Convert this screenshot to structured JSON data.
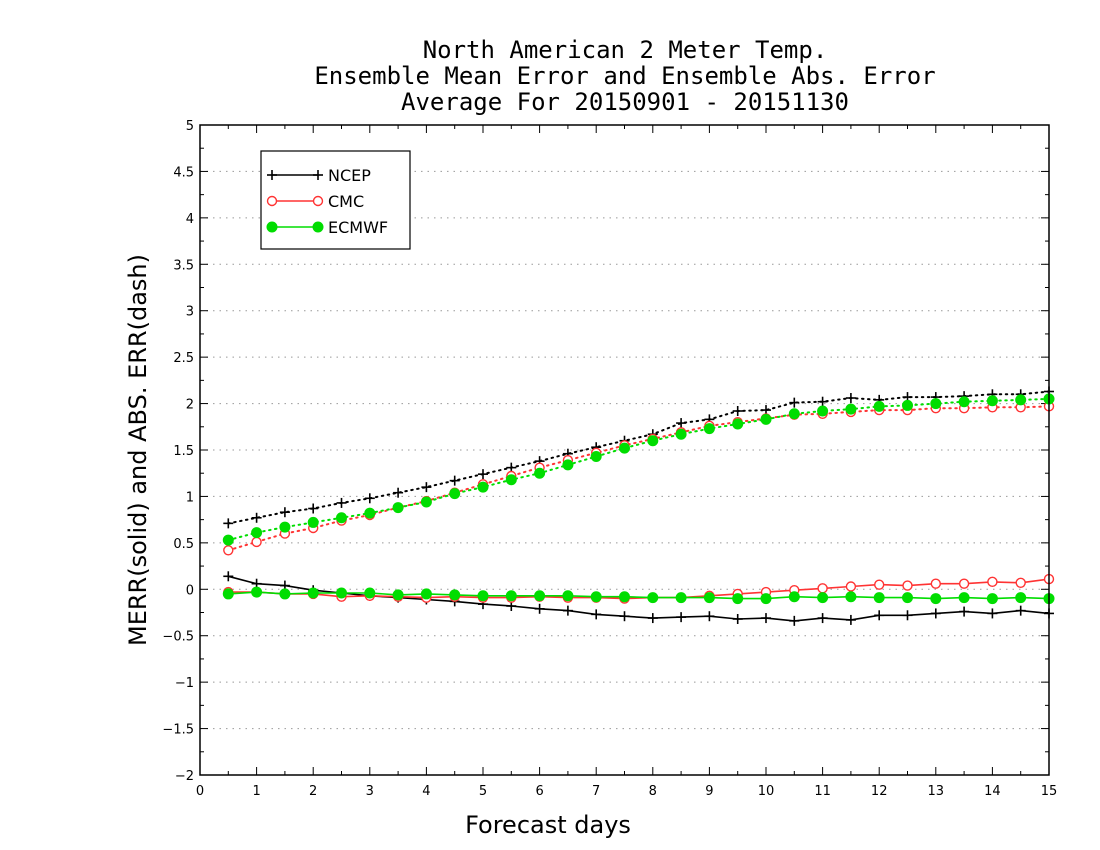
{
  "chart_data": {
    "type": "line",
    "title": [
      "North American 2 Meter Temp.",
      "Ensemble Mean Error and Ensemble Abs. Error",
      "Average For 20150901 - 20151130"
    ],
    "xlabel": "Forecast days",
    "ylabel": "MERR(solid) and ABS. ERR(dash)",
    "xlim": [
      0,
      15
    ],
    "ylim": [
      -2,
      5
    ],
    "xticks": [
      "0",
      "1",
      "2",
      "3",
      "4",
      "5",
      "6",
      "7",
      "8",
      "9",
      "10",
      "11",
      "12",
      "13",
      "14",
      "15"
    ],
    "yticks": [
      "5",
      "4.5",
      "4",
      "3.5",
      "3",
      "2.5",
      "2",
      "1.5",
      "1",
      "0.5",
      "0",
      "−0.5",
      "−1",
      "−1.5",
      "−2"
    ],
    "grid": "horizontal dotted",
    "legend_position": "top-left",
    "x": [
      0.5,
      1,
      1.5,
      2,
      2.5,
      3,
      3.5,
      4,
      4.5,
      5,
      5.5,
      6,
      6.5,
      7,
      7.5,
      8,
      8.5,
      9,
      9.5,
      10,
      10.5,
      11,
      11.5,
      12,
      12.5,
      13,
      13.5,
      14,
      14.5,
      15
    ],
    "series": [
      {
        "name": "NCEP",
        "color": "#000000",
        "marker": "plus",
        "merr": [
          0.14,
          0.06,
          0.04,
          -0.01,
          -0.04,
          -0.07,
          -0.09,
          -0.11,
          -0.13,
          -0.16,
          -0.18,
          -0.21,
          -0.23,
          -0.27,
          -0.29,
          -0.31,
          -0.3,
          -0.29,
          -0.32,
          -0.31,
          -0.34,
          -0.31,
          -0.33,
          -0.28,
          -0.28,
          -0.26,
          -0.24,
          -0.26,
          -0.23,
          -0.26
        ],
        "abs_err": [
          0.71,
          0.77,
          0.83,
          0.87,
          0.93,
          0.98,
          1.04,
          1.1,
          1.17,
          1.24,
          1.31,
          1.38,
          1.46,
          1.53,
          1.6,
          1.67,
          1.79,
          1.83,
          1.92,
          1.93,
          2.01,
          2.02,
          2.06,
          2.04,
          2.07,
          2.07,
          2.08,
          2.1,
          2.1,
          2.13
        ]
      },
      {
        "name": "CMC",
        "color": "#ff3333",
        "marker": "open-circle",
        "merr": [
          -0.03,
          -0.03,
          -0.05,
          -0.05,
          -0.08,
          -0.07,
          -0.08,
          -0.09,
          -0.08,
          -0.09,
          -0.09,
          -0.08,
          -0.09,
          -0.09,
          -0.1,
          -0.09,
          -0.09,
          -0.07,
          -0.05,
          -0.03,
          -0.01,
          0.01,
          0.03,
          0.05,
          0.04,
          0.06,
          0.06,
          0.08,
          0.07,
          0.11
        ],
        "abs_err": [
          0.42,
          0.51,
          0.6,
          0.66,
          0.74,
          0.8,
          0.88,
          0.95,
          1.04,
          1.13,
          1.22,
          1.31,
          1.39,
          1.47,
          1.55,
          1.62,
          1.69,
          1.76,
          1.8,
          1.84,
          1.88,
          1.89,
          1.91,
          1.93,
          1.93,
          1.95,
          1.95,
          1.96,
          1.96,
          1.97
        ]
      },
      {
        "name": "ECMWF",
        "color": "#00dd00",
        "marker": "filled-circle",
        "merr": [
          -0.05,
          -0.03,
          -0.05,
          -0.04,
          -0.04,
          -0.04,
          -0.06,
          -0.05,
          -0.06,
          -0.07,
          -0.07,
          -0.07,
          -0.07,
          -0.08,
          -0.08,
          -0.09,
          -0.09,
          -0.09,
          -0.1,
          -0.1,
          -0.08,
          -0.09,
          -0.08,
          -0.09,
          -0.09,
          -0.1,
          -0.09,
          -0.1,
          -0.09,
          -0.1
        ],
        "abs_err": [
          0.53,
          0.61,
          0.67,
          0.72,
          0.77,
          0.82,
          0.88,
          0.94,
          1.03,
          1.1,
          1.18,
          1.25,
          1.34,
          1.43,
          1.52,
          1.6,
          1.67,
          1.73,
          1.78,
          1.83,
          1.89,
          1.92,
          1.94,
          1.97,
          1.98,
          2.0,
          2.02,
          2.03,
          2.04,
          2.05
        ]
      }
    ]
  }
}
